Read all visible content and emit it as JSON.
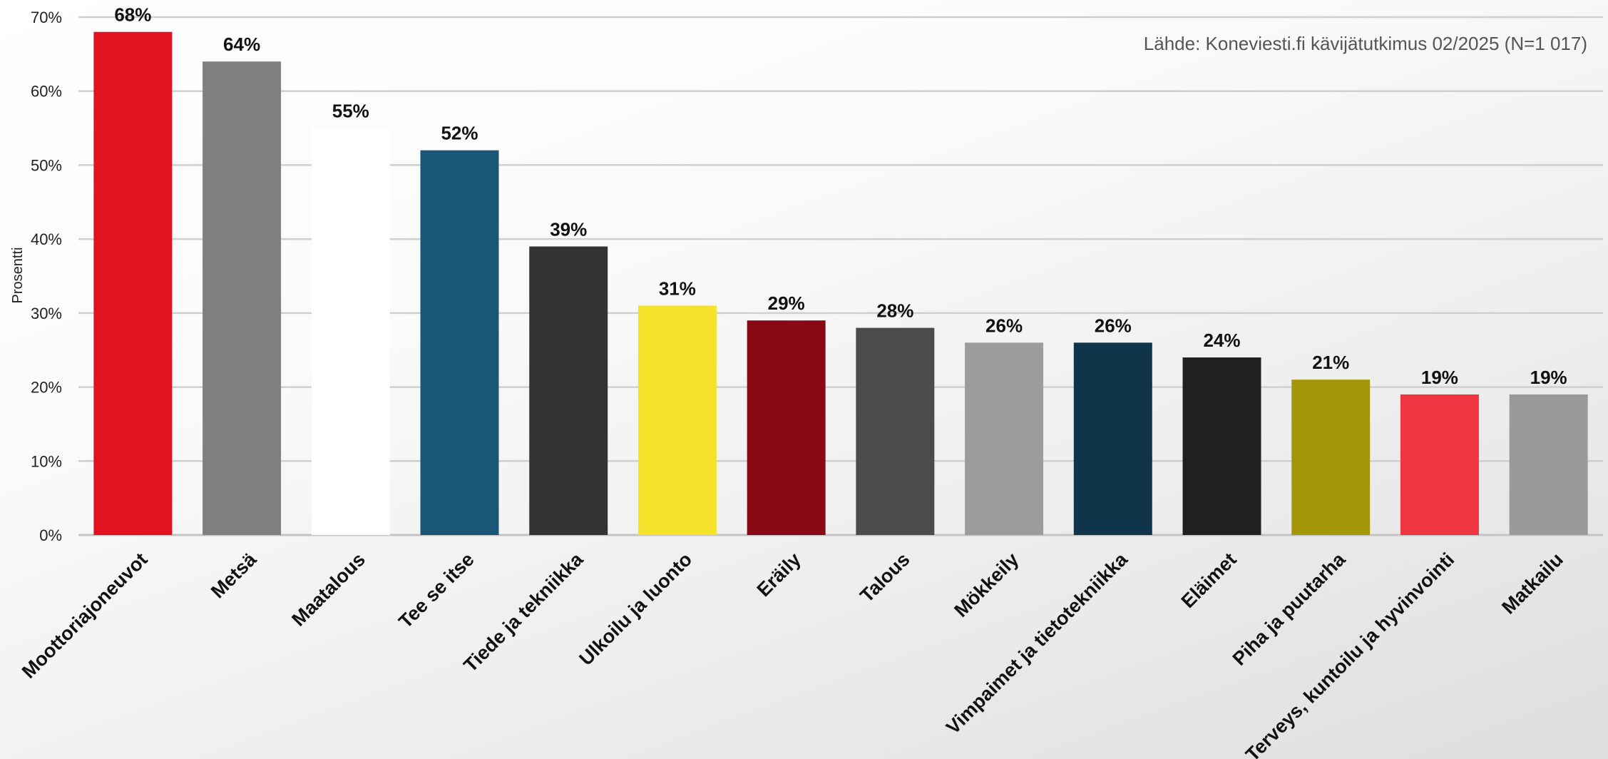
{
  "chart_data": {
    "type": "bar",
    "categories": [
      "Moottoriajoneuvot",
      "Metsä",
      "Maatalous",
      "Tee se itse",
      "Tiede ja tekniikka",
      "Ulkoilu ja luonto",
      "Eräily",
      "Talous",
      "Mökkeily",
      "Vimpaimet ja tietotekniikka",
      "Eläimet",
      "Piha ja puutarha",
      "Terveys, kuntoilu ja hyvinvointi",
      "Matkailu"
    ],
    "values": [
      68,
      64,
      55,
      52,
      39,
      31,
      29,
      28,
      26,
      26,
      24,
      21,
      19,
      19
    ],
    "value_labels": [
      "68%",
      "64%",
      "55%",
      "52%",
      "39%",
      "31%",
      "29%",
      "28%",
      "26%",
      "26%",
      "24%",
      "21%",
      "19%",
      "19%"
    ],
    "colors": [
      "#e31220",
      "#7f7f7f",
      "#ffffff",
      "#1a5776",
      "#333333",
      "#f5e22a",
      "#870a14",
      "#4b4b4b",
      "#9c9c9c",
      "#10354a",
      "#202020",
      "#a59508",
      "#ef3542",
      "#9a9a9a"
    ],
    "ylabel": "Prosentti",
    "xlabel": "",
    "ylim": [
      0,
      70
    ],
    "yticks": [
      0,
      10,
      20,
      30,
      40,
      50,
      60,
      70
    ],
    "ytick_labels": [
      "0%",
      "10%",
      "20%",
      "30%",
      "40%",
      "50%",
      "60%",
      "70%"
    ],
    "grid": true,
    "annotation": "Lähde:  Koneviesti.fi kävijätutkimus 02/2025 (N=1 017)"
  }
}
